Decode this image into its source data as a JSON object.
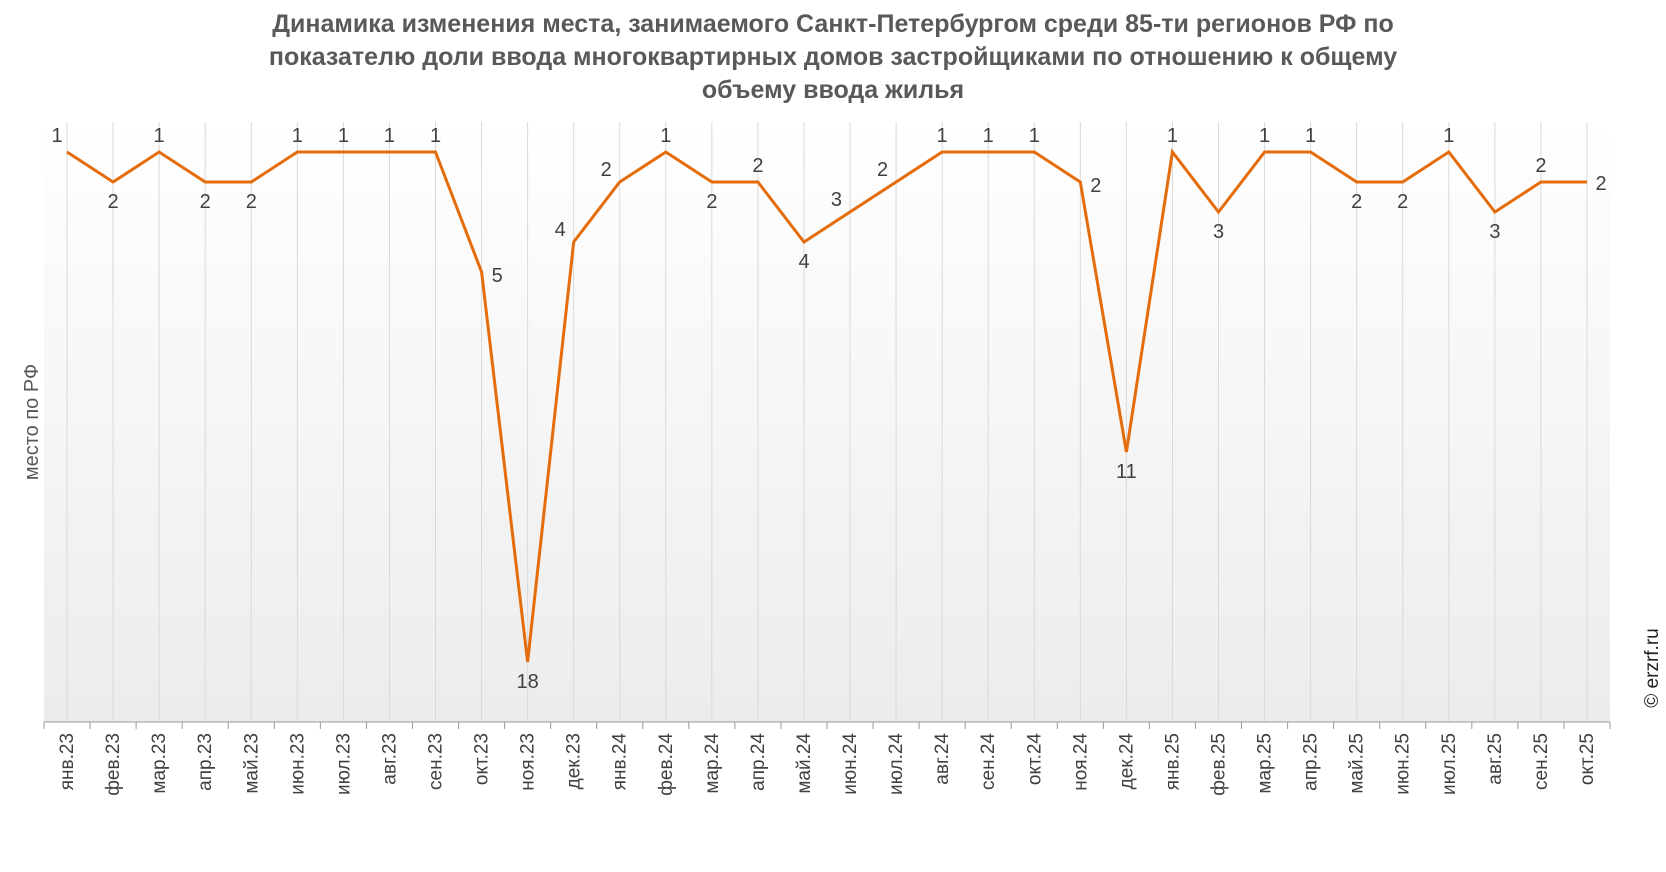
{
  "chart_data": {
    "type": "line",
    "title_lines": [
      "Динамика изменения места, занимаемого Санкт-Петербургом среди 85-ти регионов РФ по",
      "показателю доли ввода многоквартирных домов застройщиками по отношению к общему",
      "объему ввода жилья"
    ],
    "xlabel": "",
    "ylabel": "место по РФ",
    "y_inverted": true,
    "ylim": [
      1,
      19
    ],
    "grid": "vertical",
    "categories": [
      "янв.23",
      "фев.23",
      "мар.23",
      "апр.23",
      "май.23",
      "июн.23",
      "июл.23",
      "авг.23",
      "сен.23",
      "окт.23",
      "ноя.23",
      "дек.23",
      "янв.24",
      "фев.24",
      "мар.24",
      "апр.24",
      "май.24",
      "июн.24",
      "июл.24",
      "авг.24",
      "сен.24",
      "окт.24",
      "ноя.24",
      "дек.24",
      "янв.25",
      "фев.25",
      "мар.25",
      "апр.25",
      "май.25",
      "июн.25",
      "июл.25",
      "авг.25",
      "сен.25",
      "окт.25"
    ],
    "series": [
      {
        "values": [
          1,
          2,
          1,
          2,
          2,
          1,
          1,
          1,
          1,
          5,
          18,
          4,
          2,
          1,
          2,
          2,
          4,
          3,
          2,
          1,
          1,
          1,
          2,
          11,
          1,
          3,
          1,
          1,
          2,
          2,
          1,
          3,
          2,
          2
        ],
        "labels": [
          "1",
          "2",
          "1",
          "2",
          "2",
          "1",
          "1",
          "1",
          "1",
          "5",
          "18",
          "4",
          "2",
          "1",
          "2",
          "2",
          "4",
          "3",
          "2",
          "1",
          "1",
          "1",
          "2",
          "11",
          "1",
          "3",
          "1",
          "1",
          "2",
          "2",
          "1",
          "3",
          "2",
          "2"
        ],
        "color": "#E46C0A"
      }
    ],
    "watermark": "© erzrf.ru"
  }
}
